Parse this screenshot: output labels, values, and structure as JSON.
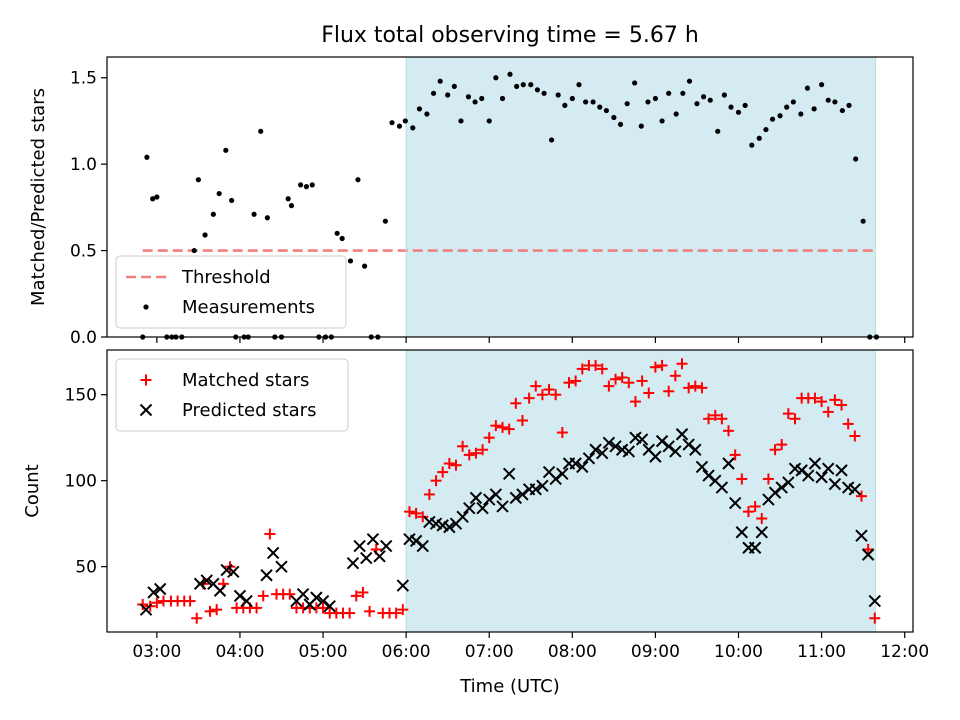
{
  "chart_data": {
    "title": "Flux total observing time = 5.67 h",
    "xlabel": "Time (UTC)",
    "x_unit": "hours UTC",
    "xlim": [
      2.4,
      12.1
    ],
    "xticks": [
      "03:00",
      "04:00",
      "05:00",
      "06:00",
      "07:00",
      "08:00",
      "09:00",
      "10:00",
      "11:00",
      "12:00"
    ],
    "shaded_span": [
      6.0,
      11.65
    ],
    "shade_color": "#d4ebf1",
    "panels": [
      {
        "type": "scatter",
        "ylabel": "Matched/Predicted stars",
        "ylim": [
          0,
          1.62
        ],
        "yticks": [
          "0.0",
          "0.5",
          "1.0",
          "1.5"
        ],
        "legend_position": "lower-left",
        "threshold": {
          "name": "Threshold",
          "value": 0.5,
          "x_range": [
            2.83,
            11.65
          ],
          "color": "#f08080"
        },
        "series": [
          {
            "name": "Measurements",
            "color": "#000000",
            "marker": "dot",
            "x": [
              2.83,
              2.88,
              2.95,
              3.0,
              3.12,
              3.18,
              3.23,
              3.3,
              3.45,
              3.5,
              3.58,
              3.68,
              3.75,
              3.83,
              3.9,
              3.95,
              4.05,
              4.1,
              4.17,
              4.25,
              4.33,
              4.42,
              4.5,
              4.58,
              4.62,
              4.73,
              4.8,
              4.87,
              4.95,
              5.03,
              5.1,
              5.17,
              5.23,
              5.33,
              5.42,
              5.5,
              5.58,
              5.66,
              5.75,
              5.83,
              5.92,
              5.99,
              6.08,
              6.16,
              6.25,
              6.33,
              6.41,
              6.5,
              6.58,
              6.66,
              6.75,
              6.83,
              6.91,
              7.0,
              7.08,
              7.16,
              7.25,
              7.33,
              7.41,
              7.5,
              7.58,
              7.66,
              7.75,
              7.83,
              7.91,
              8.0,
              8.08,
              8.16,
              8.25,
              8.33,
              8.41,
              8.5,
              8.58,
              8.66,
              8.75,
              8.83,
              8.91,
              9.0,
              9.08,
              9.16,
              9.25,
              9.33,
              9.41,
              9.5,
              9.58,
              9.66,
              9.75,
              9.83,
              9.91,
              10.0,
              10.08,
              10.16,
              10.25,
              10.33,
              10.41,
              10.5,
              10.58,
              10.66,
              10.75,
              10.83,
              10.91,
              11.0,
              11.08,
              11.16,
              11.25,
              11.33,
              11.41,
              11.5,
              11.58,
              11.66
            ],
            "y": [
              0.0,
              1.04,
              0.8,
              0.81,
              0.0,
              0.0,
              0.0,
              0.0,
              0.5,
              0.91,
              0.59,
              0.71,
              0.83,
              1.08,
              0.79,
              0.0,
              0.0,
              0.0,
              0.71,
              1.19,
              0.69,
              0.0,
              0.0,
              0.8,
              0.76,
              0.88,
              0.87,
              0.88,
              0.0,
              0.0,
              0.0,
              0.6,
              0.57,
              0.44,
              0.91,
              0.41,
              0.0,
              0.0,
              0.67,
              1.24,
              1.22,
              1.25,
              1.21,
              1.32,
              1.29,
              1.41,
              1.48,
              1.4,
              1.45,
              1.25,
              1.39,
              1.36,
              1.38,
              1.25,
              1.5,
              1.38,
              1.52,
              1.45,
              1.46,
              1.46,
              1.43,
              1.41,
              1.14,
              1.4,
              1.34,
              1.38,
              1.46,
              1.36,
              1.36,
              1.33,
              1.31,
              1.27,
              1.23,
              1.35,
              1.47,
              1.22,
              1.36,
              1.38,
              1.25,
              1.41,
              1.29,
              1.41,
              1.48,
              1.35,
              1.39,
              1.37,
              1.19,
              1.4,
              1.33,
              1.3,
              1.34,
              1.11,
              1.15,
              1.2,
              1.26,
              1.28,
              1.33,
              1.36,
              1.29,
              1.44,
              1.32,
              1.46,
              1.37,
              1.36,
              1.31,
              1.34,
              1.03,
              0.67,
              0.0,
              0.0
            ]
          }
        ]
      },
      {
        "type": "scatter",
        "ylabel": "Count",
        "ylim": [
          12,
          176
        ],
        "yticks": [
          "50",
          "100",
          "150"
        ],
        "legend_position": "upper-left",
        "series": [
          {
            "name": "Matched stars",
            "color": "#ff0000",
            "marker": "plus",
            "x": [
              2.83,
              2.92,
              3.0,
              3.08,
              3.17,
              3.25,
              3.33,
              3.4,
              3.48,
              3.56,
              3.64,
              3.72,
              3.8,
              3.88,
              3.96,
              4.04,
              4.12,
              4.2,
              4.28,
              4.36,
              4.44,
              4.52,
              4.6,
              4.68,
              4.76,
              4.84,
              4.92,
              5.0,
              5.08,
              5.16,
              5.24,
              5.32,
              5.4,
              5.48,
              5.56,
              5.64,
              5.72,
              5.8,
              5.88,
              5.96,
              6.04,
              6.12,
              6.2,
              6.28,
              6.36,
              6.44,
              6.52,
              6.6,
              6.68,
              6.76,
              6.84,
              6.92,
              7.0,
              7.08,
              7.16,
              7.24,
              7.32,
              7.4,
              7.48,
              7.56,
              7.64,
              7.72,
              7.8,
              7.88,
              7.96,
              8.04,
              8.12,
              8.2,
              8.28,
              8.36,
              8.44,
              8.52,
              8.6,
              8.68,
              8.76,
              8.84,
              8.92,
              9.0,
              9.08,
              9.16,
              9.24,
              9.32,
              9.4,
              9.48,
              9.56,
              9.64,
              9.72,
              9.8,
              9.88,
              9.96,
              10.04,
              10.12,
              10.2,
              10.28,
              10.36,
              10.44,
              10.52,
              10.6,
              10.68,
              10.76,
              10.84,
              10.92,
              11.0,
              11.08,
              11.16,
              11.24,
              11.32,
              11.4,
              11.48,
              11.56,
              11.64
            ],
            "y": [
              28,
              27,
              29,
              30,
              30,
              30,
              30,
              30,
              20,
              40,
              24,
              25,
              40,
              50,
              26,
              26,
              26,
              26,
              33,
              69,
              34,
              34,
              34,
              26,
              26,
              26,
              26,
              26,
              23,
              23,
              23,
              23,
              33,
              35,
              24,
              60,
              23,
              23,
              23,
              25,
              82,
              81,
              79,
              92,
              100,
              105,
              110,
              109,
              120,
              115,
              116,
              118,
              125,
              132,
              131,
              130,
              145,
              135,
              148,
              155,
              150,
              153,
              150,
              128,
              157,
              158,
              165,
              167,
              167,
              165,
              155,
              159,
              160,
              157,
              146,
              158,
              151,
              166,
              167,
              152,
              161,
              168,
              154,
              155,
              154,
              136,
              138,
              136,
              129,
              115,
              101,
              82,
              85,
              78,
              101,
              118,
              121,
              139,
              136,
              148,
              148,
              148,
              146,
              140,
              147,
              144,
              133,
              126,
              91,
              60,
              20
            ]
          },
          {
            "name": "Predicted stars",
            "color": "#000000",
            "marker": "x",
            "x": [
              2.87,
              2.96,
              3.04,
              3.52,
              3.6,
              3.68,
              3.76,
              3.84,
              3.92,
              4.0,
              4.08,
              4.32,
              4.4,
              4.5,
              4.68,
              4.76,
              4.84,
              4.92,
              5.0,
              5.08,
              5.36,
              5.44,
              5.52,
              5.6,
              5.68,
              5.76,
              5.96,
              6.04,
              6.12,
              6.2,
              6.28,
              6.36,
              6.44,
              6.52,
              6.6,
              6.68,
              6.76,
              6.84,
              6.92,
              7.0,
              7.08,
              7.16,
              7.24,
              7.32,
              7.4,
              7.48,
              7.56,
              7.64,
              7.72,
              7.8,
              7.88,
              7.96,
              8.04,
              8.12,
              8.2,
              8.28,
              8.36,
              8.44,
              8.52,
              8.6,
              8.68,
              8.76,
              8.84,
              8.92,
              9.0,
              9.08,
              9.16,
              9.24,
              9.32,
              9.4,
              9.48,
              9.56,
              9.64,
              9.72,
              9.8,
              9.88,
              9.96,
              10.04,
              10.12,
              10.2,
              10.28,
              10.36,
              10.44,
              10.52,
              10.6,
              10.68,
              10.76,
              10.84,
              10.92,
              11.0,
              11.08,
              11.16,
              11.24,
              11.32,
              11.4,
              11.48,
              11.56,
              11.64
            ],
            "y": [
              25,
              35,
              37,
              40,
              42,
              40,
              36,
              48,
              47,
              33,
              30,
              45,
              58,
              50,
              30,
              34,
              28,
              32,
              30,
              27,
              52,
              62,
              55,
              66,
              56,
              62,
              39,
              66,
              65,
              62,
              76,
              75,
              74,
              73,
              75,
              79,
              84,
              90,
              84,
              89,
              92,
              85,
              104,
              90,
              92,
              95,
              95,
              97,
              105,
              101,
              104,
              110,
              110,
              108,
              113,
              118,
              116,
              122,
              120,
              118,
              117,
              125,
              124,
              118,
              114,
              123,
              120,
              117,
              127,
              121,
              118,
              108,
              103,
              100,
              96,
              110,
              87,
              70,
              61,
              61,
              70,
              89,
              93,
              96,
              99,
              107,
              106,
              103,
              110,
              102,
              107,
              98,
              106,
              96,
              95,
              68,
              57,
              30
            ]
          }
        ]
      }
    ]
  }
}
